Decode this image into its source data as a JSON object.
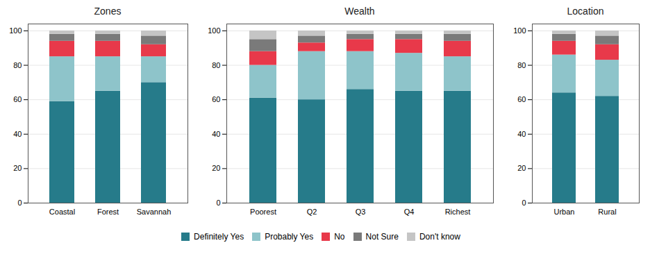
{
  "chart_data": [
    {
      "type": "bar",
      "stacked": true,
      "title": "Zones",
      "categories": [
        "Coastal",
        "Forest",
        "Savannah"
      ],
      "series": [
        {
          "name": "Definitely Yes",
          "color": "#267b8a",
          "values": [
            59,
            65,
            70
          ]
        },
        {
          "name": "Probably Yes",
          "color": "#8ec4ca",
          "values": [
            26,
            20,
            15
          ]
        },
        {
          "name": "No",
          "color": "#e8394a",
          "values": [
            9,
            9,
            7
          ]
        },
        {
          "name": "Not Sure",
          "color": "#7a7a7a",
          "values": [
            4,
            4,
            5
          ]
        },
        {
          "name": "Don't know",
          "color": "#c5c5c5",
          "values": [
            2,
            2,
            3
          ]
        }
      ],
      "ylim": [
        0,
        104
      ],
      "yticks": [
        0,
        20,
        40,
        60,
        80,
        100
      ],
      "grid": true,
      "legend": "bottom"
    },
    {
      "type": "bar",
      "stacked": true,
      "title": "Wealth",
      "categories": [
        "Poorest",
        "Q2",
        "Q3",
        "Q4",
        "Richest"
      ],
      "series": [
        {
          "name": "Definitely Yes",
          "color": "#267b8a",
          "values": [
            61,
            60,
            66,
            65,
            65
          ]
        },
        {
          "name": "Probably Yes",
          "color": "#8ec4ca",
          "values": [
            19,
            28,
            22,
            22,
            20
          ]
        },
        {
          "name": "No",
          "color": "#e8394a",
          "values": [
            8,
            5,
            7,
            8,
            9
          ]
        },
        {
          "name": "Not Sure",
          "color": "#7a7a7a",
          "values": [
            7,
            4,
            3,
            3,
            4
          ]
        },
        {
          "name": "Don't know",
          "color": "#c5c5c5",
          "values": [
            5,
            3,
            2,
            2,
            2
          ]
        }
      ],
      "ylim": [
        0,
        104
      ],
      "yticks": [
        0,
        20,
        40,
        60,
        80,
        100
      ],
      "grid": true,
      "legend": "bottom"
    },
    {
      "type": "bar",
      "stacked": true,
      "title": "Location",
      "categories": [
        "Urban",
        "Rural"
      ],
      "series": [
        {
          "name": "Definitely Yes",
          "color": "#267b8a",
          "values": [
            64,
            62
          ]
        },
        {
          "name": "Probably Yes",
          "color": "#8ec4ca",
          "values": [
            22,
            21
          ]
        },
        {
          "name": "No",
          "color": "#e8394a",
          "values": [
            8,
            9
          ]
        },
        {
          "name": "Not Sure",
          "color": "#7a7a7a",
          "values": [
            4,
            5
          ]
        },
        {
          "name": "Don't know",
          "color": "#c5c5c5",
          "values": [
            2,
            3
          ]
        }
      ],
      "ylim": [
        0,
        104
      ],
      "yticks": [
        0,
        20,
        40,
        60,
        80,
        100
      ],
      "grid": true,
      "legend": "bottom"
    }
  ]
}
